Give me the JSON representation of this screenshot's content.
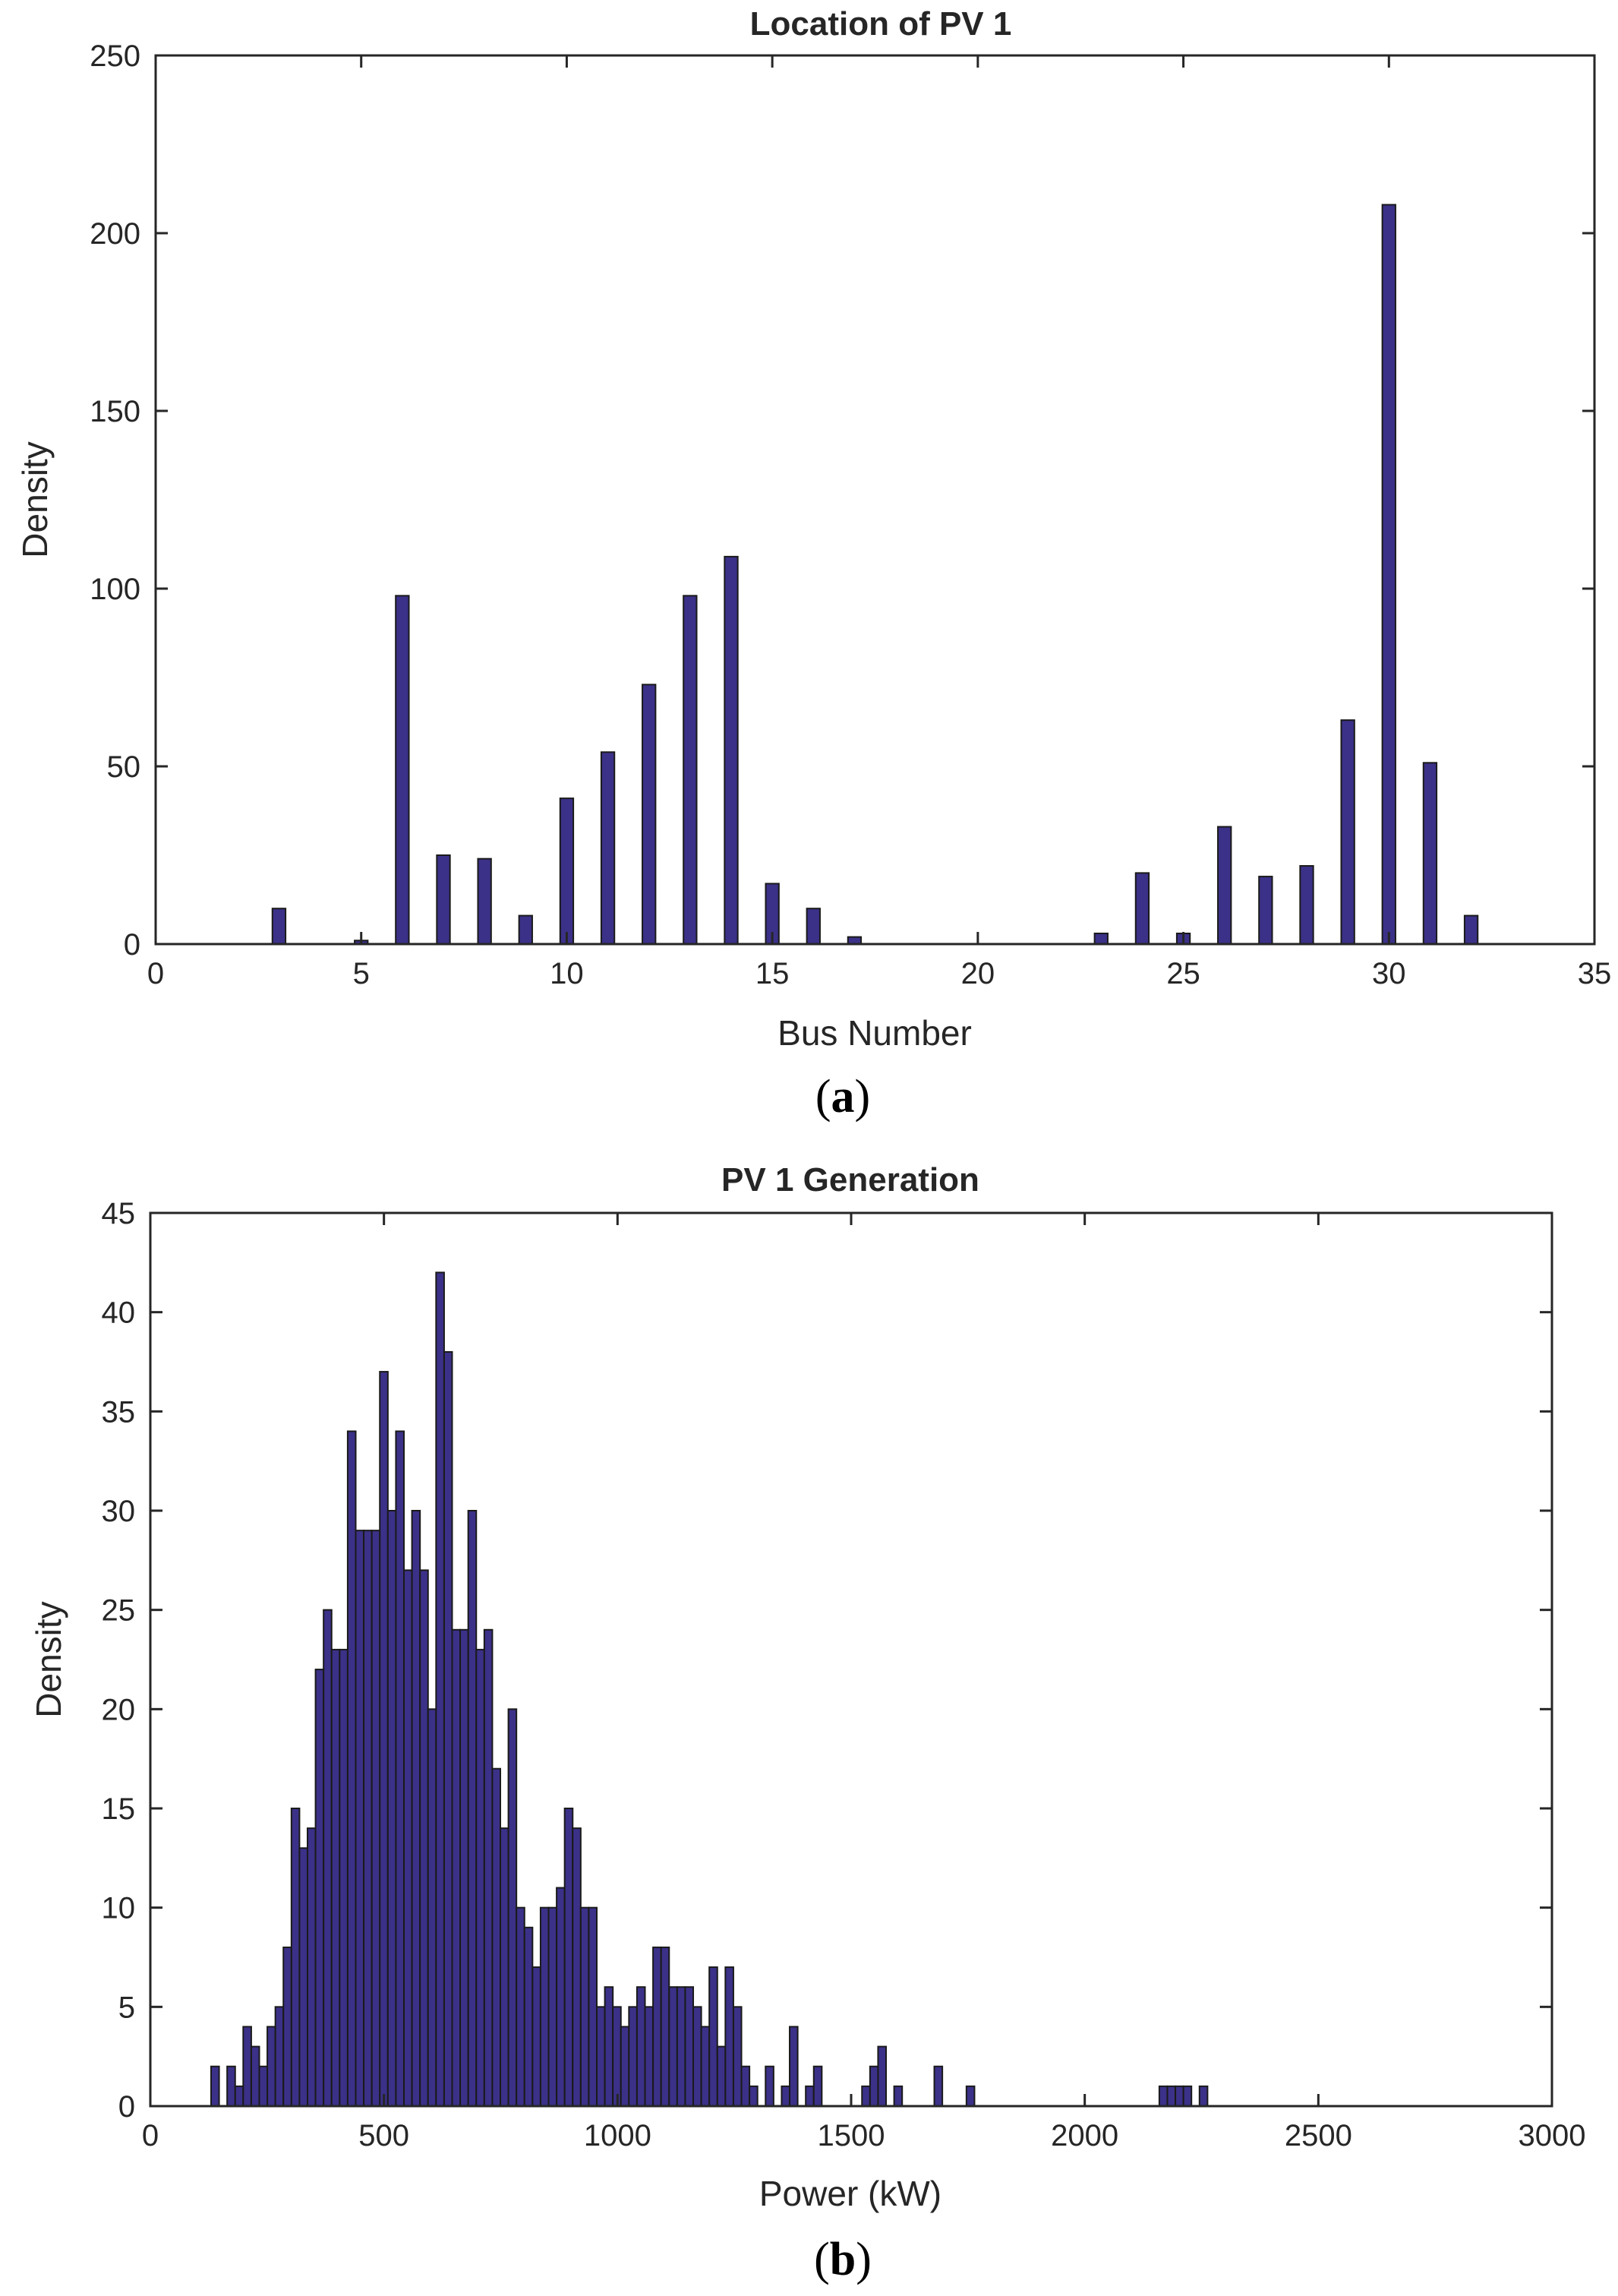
{
  "chart_data": [
    {
      "type": "bar",
      "title": "Location of PV 1",
      "xlabel": "Bus Number",
      "ylabel": "Density",
      "panel_label": "a",
      "xlim": [
        0,
        35
      ],
      "ylim": [
        0,
        250
      ],
      "xticks": [
        0,
        5,
        10,
        15,
        20,
        25,
        30,
        35
      ],
      "yticks": [
        0,
        50,
        100,
        150,
        200,
        250
      ],
      "grid": false,
      "bar_width": 0.32,
      "x": [
        3,
        5,
        6,
        7,
        8,
        9,
        10,
        11,
        12,
        13,
        14,
        15,
        16,
        17,
        23,
        24,
        25,
        26,
        27,
        28,
        29,
        30,
        31,
        32
      ],
      "values": [
        10,
        1,
        98,
        25,
        24,
        8,
        41,
        54,
        73,
        98,
        109,
        17,
        10,
        2,
        3,
        20,
        3,
        33,
        19,
        22,
        63,
        208,
        51,
        8
      ]
    },
    {
      "type": "bar",
      "title": "PV 1 Generation",
      "xlabel": "Power (kW)",
      "ylabel": "Density",
      "panel_label": "b",
      "xlim": [
        0,
        3000
      ],
      "ylim": [
        0,
        45
      ],
      "xticks": [
        0,
        500,
        1000,
        1500,
        2000,
        2500,
        3000
      ],
      "yticks": [
        0,
        5,
        10,
        15,
        20,
        25,
        30,
        35,
        40,
        45
      ],
      "grid": false,
      "bin_start": 130,
      "bin_width": 17.2,
      "values": [
        2,
        0,
        2,
        1,
        4,
        3,
        2,
        4,
        5,
        8,
        15,
        13,
        14,
        22,
        25,
        23,
        23,
        34,
        29,
        29,
        29,
        37,
        30,
        34,
        27,
        30,
        27,
        20,
        42,
        38,
        24,
        24,
        30,
        23,
        24,
        17,
        14,
        20,
        10,
        9,
        7,
        10,
        10,
        11,
        15,
        14,
        10,
        10,
        5,
        6,
        5,
        4,
        5,
        6,
        5,
        8,
        8,
        6,
        6,
        6,
        5,
        4,
        7,
        3,
        7,
        5,
        2,
        1,
        0,
        2,
        0,
        1,
        4,
        0,
        1,
        2,
        0,
        0,
        0,
        0,
        0,
        1,
        2,
        3,
        0,
        1,
        0,
        0,
        0,
        0,
        2,
        0,
        0,
        0,
        1,
        0,
        0,
        0,
        0,
        0,
        0,
        0,
        0,
        0,
        0,
        0,
        0,
        0,
        0,
        0,
        0,
        0,
        0,
        0,
        0,
        0,
        0,
        0,
        1,
        1,
        1,
        1,
        0,
        1
      ]
    }
  ]
}
